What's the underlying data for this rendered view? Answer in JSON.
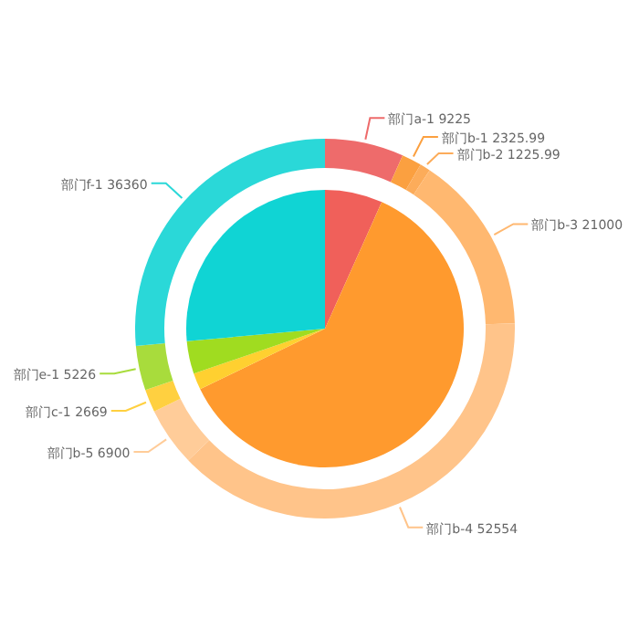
{
  "chart_data": [
    {
      "type": "pie",
      "categories": [
        null,
        null,
        null,
        null,
        null
      ],
      "values": [
        6.71,
        61.1,
        1.94,
        3.8,
        26.45
      ],
      "colors": [
        "#f0605a",
        "#ff9a2e",
        "#ffd030",
        "#a0dc20",
        "#10d4d4"
      ]
    },
    {
      "type": "donut",
      "categories": [
        "部门a-1",
        "部门b-1",
        "部门b-2",
        "部门b-3",
        "部门b-4",
        "部门b-5",
        "部门c-1",
        "部门e-1",
        "部门f-1"
      ],
      "values": [
        9225,
        2325.99,
        1225.99,
        21000,
        52554,
        6900,
        2669,
        5226,
        36360
      ],
      "colors": [
        "#ee6b6b",
        "#fba040",
        "#fcac5a",
        "#ffb870",
        "#ffc48a",
        "#ffcc99",
        "#ffd040",
        "#a8dc3c",
        "#2ad8d8"
      ],
      "data_labels": true
    }
  ]
}
